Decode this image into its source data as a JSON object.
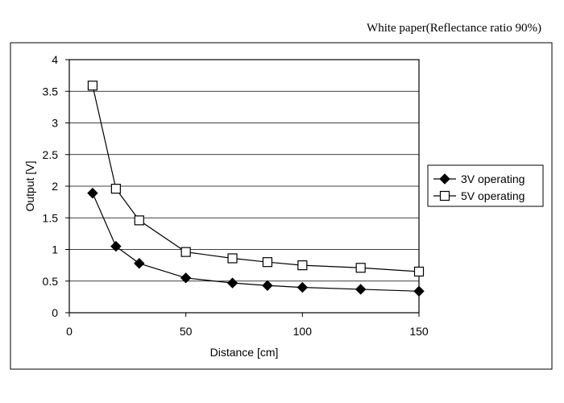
{
  "caption": "White paper(Reflectance ratio 90%)",
  "chart_data": {
    "type": "line",
    "xlabel": "Distance [cm]",
    "ylabel": "Output [V]",
    "xlim": [
      0,
      150
    ],
    "ylim": [
      0,
      4
    ],
    "xticks": [
      0,
      50,
      100,
      150
    ],
    "yticks": [
      0,
      0.5,
      1,
      1.5,
      2,
      2.5,
      3,
      3.5,
      4
    ],
    "grid": "horizontal",
    "legend_position": "right",
    "series": [
      {
        "name": "3V operating",
        "marker": "filled-diamond",
        "color": "#000000",
        "x": [
          10,
          20,
          30,
          50,
          70,
          85,
          100,
          125,
          150
        ],
        "y": [
          1.89,
          1.05,
          0.78,
          0.55,
          0.47,
          0.43,
          0.4,
          0.37,
          0.34
        ]
      },
      {
        "name": "5V operating",
        "marker": "open-square",
        "color": "#000000",
        "x": [
          10,
          20,
          30,
          50,
          70,
          85,
          100,
          125,
          150
        ],
        "y": [
          3.59,
          1.96,
          1.46,
          0.96,
          0.86,
          0.8,
          0.75,
          0.71,
          0.65
        ]
      }
    ]
  }
}
